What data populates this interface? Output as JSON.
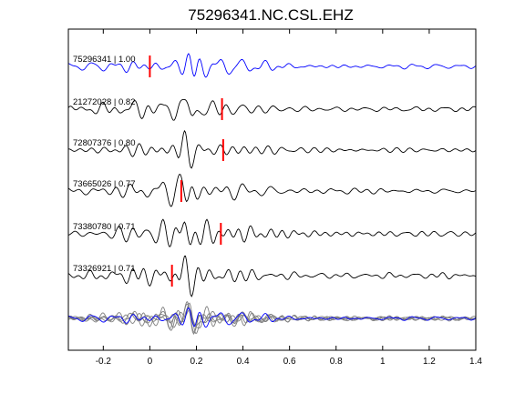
{
  "figure": {
    "title": "75296341.NC.CSL.EHZ"
  },
  "colors": {
    "primary_trace": "#0000ff",
    "other_trace": "#000000",
    "overlay_trace": "#808080",
    "pick_marker": "#ff0000",
    "axes": "#000000"
  },
  "chart_data": {
    "type": "line",
    "title": "75296341.NC.CSL.EHZ",
    "xlabel": "",
    "ylabel": "",
    "xlim": [
      -0.35,
      1.4
    ],
    "xticks": [
      -0.2,
      0,
      0.2,
      0.4,
      0.6,
      0.8,
      1,
      1.2,
      1.4
    ],
    "xtick_labels": [
      "-0.2",
      "0",
      "0.2",
      "0.4",
      "0.6",
      "0.8",
      "1",
      "1.2",
      "1.4"
    ],
    "grid": false,
    "series": [
      {
        "name": "75296341 | 1.00",
        "label": "75296341 | 1.00",
        "pick": 0.0,
        "color": "#0000ff",
        "seed": 1,
        "pulse": 0.18
      },
      {
        "name": "21272028 | 0.82",
        "label": "21272028 | 0.82",
        "pick": 0.31,
        "color": "#000000",
        "seed": 2,
        "pulse": 0.17
      },
      {
        "name": "72807376 | 0.80",
        "label": "72807376 | 0.80",
        "pick": 0.315,
        "color": "#000000",
        "seed": 3,
        "pulse": 0.16
      },
      {
        "name": "73665026 | 0.77",
        "label": "73665026 | 0.77",
        "pick": 0.135,
        "color": "#000000",
        "seed": 4,
        "pulse": 0.15
      },
      {
        "name": "73380780 | 0.71",
        "label": "73380780 | 0.71",
        "pick": 0.305,
        "color": "#000000",
        "seed": 5,
        "pulse": 0.16
      },
      {
        "name": "73326921 | 0.71",
        "label": "73326921 | 0.71",
        "pick": 0.095,
        "color": "#000000",
        "seed": 6,
        "pulse": 0.16
      }
    ]
  }
}
